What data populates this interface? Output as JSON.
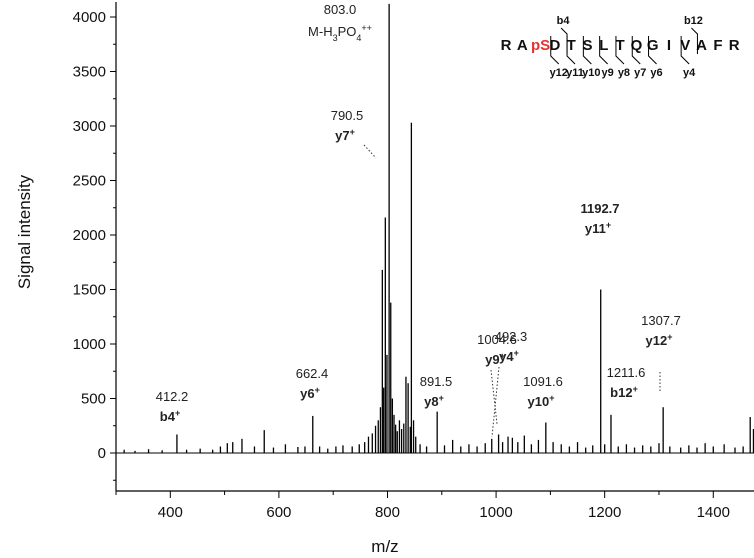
{
  "chart_data": {
    "type": "bar",
    "title": "",
    "xlabel": "m/z",
    "ylabel": "Signal intensity",
    "xlim": [
      300,
      1475
    ],
    "ylim": [
      -300,
      4100
    ],
    "xticks": [
      400,
      600,
      800,
      1000,
      1200,
      1400
    ],
    "xtick_labels": [
      "400",
      "600",
      "800",
      "1000",
      "1200",
      "1400"
    ],
    "yticks": [
      0,
      500,
      1000,
      1500,
      2000,
      2500,
      3000,
      3500,
      4000
    ],
    "ytick_labels": [
      "0",
      "500",
      "1000",
      "1500",
      "2000",
      "2500",
      "3000",
      "3500",
      "4000"
    ],
    "grid": false,
    "peaks": [
      {
        "mz": 315,
        "intensity": 30
      },
      {
        "mz": 335,
        "intensity": 20
      },
      {
        "mz": 360,
        "intensity": 35
      },
      {
        "mz": 385,
        "intensity": 25
      },
      {
        "mz": 412.2,
        "intensity": 170
      },
      {
        "mz": 430,
        "intensity": 30
      },
      {
        "mz": 455,
        "intensity": 40
      },
      {
        "mz": 478,
        "intensity": 30
      },
      {
        "mz": 492.3,
        "intensity": 60
      },
      {
        "mz": 505,
        "intensity": 90
      },
      {
        "mz": 515,
        "intensity": 100
      },
      {
        "mz": 532,
        "intensity": 130
      },
      {
        "mz": 555,
        "intensity": 60
      },
      {
        "mz": 573,
        "intensity": 210
      },
      {
        "mz": 590,
        "intensity": 50
      },
      {
        "mz": 612,
        "intensity": 80
      },
      {
        "mz": 635,
        "intensity": 55
      },
      {
        "mz": 648,
        "intensity": 60
      },
      {
        "mz": 662.4,
        "intensity": 340
      },
      {
        "mz": 675,
        "intensity": 60
      },
      {
        "mz": 690,
        "intensity": 40
      },
      {
        "mz": 705,
        "intensity": 60
      },
      {
        "mz": 718,
        "intensity": 70
      },
      {
        "mz": 735,
        "intensity": 60
      },
      {
        "mz": 748,
        "intensity": 80
      },
      {
        "mz": 758,
        "intensity": 100
      },
      {
        "mz": 765,
        "intensity": 150
      },
      {
        "mz": 772,
        "intensity": 180
      },
      {
        "mz": 778,
        "intensity": 250
      },
      {
        "mz": 783,
        "intensity": 300
      },
      {
        "mz": 787,
        "intensity": 420
      },
      {
        "mz": 790.5,
        "intensity": 1680
      },
      {
        "mz": 793,
        "intensity": 600
      },
      {
        "mz": 796,
        "intensity": 2160
      },
      {
        "mz": 799,
        "intensity": 900
      },
      {
        "mz": 803.0,
        "intensity": 4120
      },
      {
        "mz": 806,
        "intensity": 1380
      },
      {
        "mz": 809,
        "intensity": 500
      },
      {
        "mz": 812,
        "intensity": 350
      },
      {
        "mz": 815,
        "intensity": 260
      },
      {
        "mz": 818,
        "intensity": 200
      },
      {
        "mz": 822,
        "intensity": 300
      },
      {
        "mz": 826,
        "intensity": 220
      },
      {
        "mz": 830,
        "intensity": 270
      },
      {
        "mz": 834,
        "intensity": 700
      },
      {
        "mz": 838,
        "intensity": 640
      },
      {
        "mz": 842,
        "intensity": 240
      },
      {
        "mz": 844,
        "intensity": 3030
      },
      {
        "mz": 848,
        "intensity": 300
      },
      {
        "mz": 852,
        "intensity": 150
      },
      {
        "mz": 860,
        "intensity": 80
      },
      {
        "mz": 872,
        "intensity": 60
      },
      {
        "mz": 891.5,
        "intensity": 380
      },
      {
        "mz": 905,
        "intensity": 70
      },
      {
        "mz": 920,
        "intensity": 120
      },
      {
        "mz": 935,
        "intensity": 60
      },
      {
        "mz": 950,
        "intensity": 80
      },
      {
        "mz": 965,
        "intensity": 60
      },
      {
        "mz": 980,
        "intensity": 90
      },
      {
        "mz": 992,
        "intensity": 130
      },
      {
        "mz": 1004.6,
        "intensity": 170
      },
      {
        "mz": 1012,
        "intensity": 100
      },
      {
        "mz": 1022,
        "intensity": 150
      },
      {
        "mz": 1030,
        "intensity": 140
      },
      {
        "mz": 1040,
        "intensity": 100
      },
      {
        "mz": 1052,
        "intensity": 160
      },
      {
        "mz": 1065,
        "intensity": 80
      },
      {
        "mz": 1078,
        "intensity": 120
      },
      {
        "mz": 1091.6,
        "intensity": 280
      },
      {
        "mz": 1105,
        "intensity": 100
      },
      {
        "mz": 1120,
        "intensity": 80
      },
      {
        "mz": 1135,
        "intensity": 60
      },
      {
        "mz": 1150,
        "intensity": 100
      },
      {
        "mz": 1165,
        "intensity": 50
      },
      {
        "mz": 1178,
        "intensity": 70
      },
      {
        "mz": 1192.7,
        "intensity": 1500
      },
      {
        "mz": 1200,
        "intensity": 80
      },
      {
        "mz": 1211.6,
        "intensity": 350
      },
      {
        "mz": 1225,
        "intensity": 60
      },
      {
        "mz": 1240,
        "intensity": 80
      },
      {
        "mz": 1255,
        "intensity": 50
      },
      {
        "mz": 1270,
        "intensity": 70
      },
      {
        "mz": 1285,
        "intensity": 60
      },
      {
        "mz": 1300,
        "intensity": 90
      },
      {
        "mz": 1307.7,
        "intensity": 420
      },
      {
        "mz": 1320,
        "intensity": 60
      },
      {
        "mz": 1340,
        "intensity": 50
      },
      {
        "mz": 1355,
        "intensity": 70
      },
      {
        "mz": 1370,
        "intensity": 50
      },
      {
        "mz": 1385,
        "intensity": 90
      },
      {
        "mz": 1400,
        "intensity": 60
      },
      {
        "mz": 1420,
        "intensity": 80
      },
      {
        "mz": 1440,
        "intensity": 50
      },
      {
        "mz": 1455,
        "intensity": 60
      },
      {
        "mz": 1468,
        "intensity": 330
      },
      {
        "mz": 1474,
        "intensity": 220
      }
    ],
    "annotations": [
      {
        "value": "412.2",
        "ion": "b4",
        "charge": "+",
        "mz": 412.2,
        "intensity": 170
      },
      {
        "value": "492.3",
        "ion": "y4",
        "charge": "+",
        "mz": 492.3,
        "intensity": 60
      },
      {
        "value": "662.4",
        "ion": "y6",
        "charge": "+",
        "mz": 662.4,
        "intensity": 340
      },
      {
        "value": "790.5",
        "ion": "y7",
        "charge": "+",
        "mz": 790.5,
        "intensity": 1680
      },
      {
        "value": "803.0",
        "ion": "M-H3PO4",
        "charge": "++",
        "mz": 803.0,
        "intensity": 4120
      },
      {
        "value": "891.5",
        "ion": "y8",
        "charge": "+",
        "mz": 891.5,
        "intensity": 380
      },
      {
        "value": "1004.6",
        "ion": "y9",
        "charge": "+",
        "mz": 1004.6,
        "intensity": 170
      },
      {
        "value": "1091.6",
        "ion": "y10",
        "charge": "+",
        "mz": 1091.6,
        "intensity": 280
      },
      {
        "value": "1192.7",
        "ion": "y11",
        "charge": "+",
        "mz": 1192.7,
        "intensity": 1500
      },
      {
        "value": "1211.6",
        "ion": "b12",
        "charge": "+",
        "mz": 1211.6,
        "intensity": 350
      },
      {
        "value": "1307.7",
        "ion": "y12",
        "charge": "+",
        "mz": 1307.7,
        "intensity": 420
      }
    ],
    "peptide": {
      "residues": [
        "R",
        "A",
        "pS",
        "D",
        "T",
        "S",
        "L",
        "T",
        "Q",
        "G",
        "I",
        "V",
        "A",
        "F",
        "R"
      ],
      "highlight_color": "#e8312f",
      "b_ions": [
        {
          "label": "b4",
          "after_residue": 3
        },
        {
          "label": "b12",
          "after_residue": 11
        }
      ],
      "y_ions": [
        {
          "label": "y12",
          "after_residue": 2
        },
        {
          "label": "y11",
          "after_residue": 3
        },
        {
          "label": "y10",
          "after_residue": 4
        },
        {
          "label": "y9",
          "after_residue": 5
        },
        {
          "label": "y8",
          "after_residue": 6
        },
        {
          "label": "y7",
          "after_residue": 7
        },
        {
          "label": "y6",
          "after_residue": 8
        },
        {
          "label": "y4",
          "after_residue": 10
        }
      ]
    }
  }
}
